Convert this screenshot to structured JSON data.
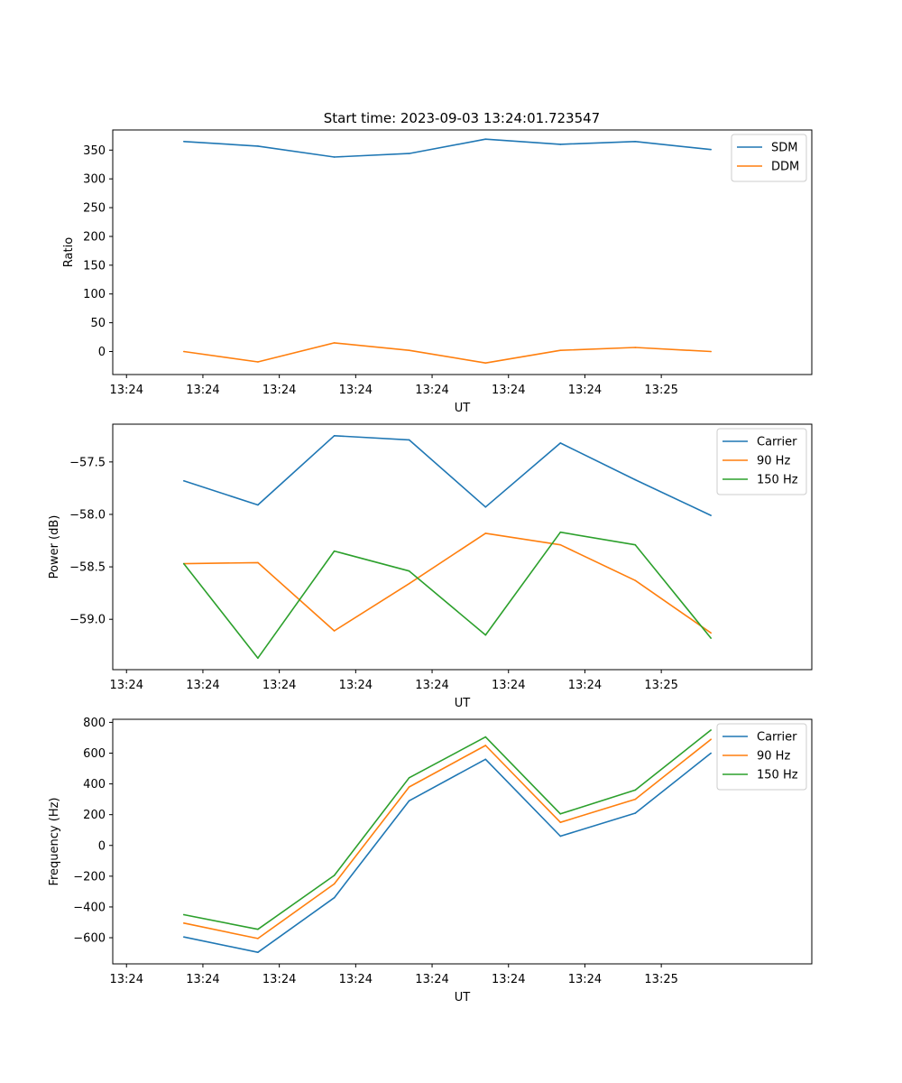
{
  "figure": {
    "title": "Start time: 2023-09-03 13:24:01.723547"
  },
  "chart_data": [
    {
      "type": "line",
      "title": "Start time: 2023-09-03 13:24:01.723547",
      "xlabel": "UT",
      "ylabel": "Ratio",
      "x_tick_labels": [
        "13:24",
        "13:24",
        "13:24",
        "13:24",
        "13:24",
        "13:24",
        "13:24",
        "13:25"
      ],
      "y_ticks": [
        0,
        50,
        100,
        150,
        200,
        250,
        300,
        350
      ],
      "y_tick_labels": [
        "0",
        "50",
        "100",
        "150",
        "200",
        "250",
        "300",
        "350"
      ],
      "ylim": [
        -40,
        385
      ],
      "x_index_range": [
        -0.18,
        8.97
      ],
      "x": [
        0.75,
        1.72,
        2.72,
        3.7,
        4.7,
        5.68,
        6.66,
        7.65
      ],
      "series": [
        {
          "name": "SDM",
          "color": "#1f77b4",
          "values": [
            365,
            357,
            338,
            344,
            369,
            360,
            365,
            351
          ]
        },
        {
          "name": "DDM",
          "color": "#ff7f0e",
          "values": [
            0,
            -18,
            15,
            2,
            -20,
            2,
            7,
            0
          ]
        }
      ],
      "legend": "top-right"
    },
    {
      "type": "line",
      "title": "",
      "xlabel": "UT",
      "ylabel": "Power (dB)",
      "x_tick_labels": [
        "13:24",
        "13:24",
        "13:24",
        "13:24",
        "13:24",
        "13:24",
        "13:24",
        "13:25"
      ],
      "y_ticks": [
        -59.0,
        -58.5,
        -58.0,
        -57.5
      ],
      "y_tick_labels": [
        "−59.0",
        "−58.5",
        "−58.0",
        "−57.5"
      ],
      "ylim": [
        -59.48,
        -57.14
      ],
      "x_index_range": [
        -0.18,
        8.97
      ],
      "x": [
        0.75,
        1.72,
        2.72,
        3.7,
        4.7,
        5.68,
        6.66,
        7.65
      ],
      "series": [
        {
          "name": "Carrier",
          "color": "#1f77b4",
          "values": [
            -57.68,
            -57.91,
            -57.25,
            -57.29,
            -57.93,
            -57.32,
            -57.67,
            -58.01
          ]
        },
        {
          "name": "90 Hz",
          "color": "#ff7f0e",
          "values": [
            -58.47,
            -58.46,
            -59.11,
            -58.66,
            -58.18,
            -58.29,
            -58.63,
            -59.13
          ]
        },
        {
          "name": "150 Hz",
          "color": "#2ca02c",
          "values": [
            -58.47,
            -59.37,
            -58.35,
            -58.54,
            -59.15,
            -58.17,
            -58.29,
            -59.18
          ]
        }
      ],
      "legend": "top-right"
    },
    {
      "type": "line",
      "title": "",
      "xlabel": "UT",
      "ylabel": "Frequency (Hz)",
      "x_tick_labels": [
        "13:24",
        "13:24",
        "13:24",
        "13:24",
        "13:24",
        "13:24",
        "13:24",
        "13:25"
      ],
      "y_ticks": [
        -600,
        -400,
        -200,
        0,
        200,
        400,
        600,
        800
      ],
      "y_tick_labels": [
        "−600",
        "−400",
        "−200",
        "0",
        "200",
        "400",
        "600",
        "800"
      ],
      "ylim": [
        -770,
        820
      ],
      "x_index_range": [
        -0.18,
        8.97
      ],
      "x": [
        0.75,
        1.72,
        2.72,
        3.7,
        4.7,
        5.68,
        6.66,
        7.65
      ],
      "series": [
        {
          "name": "Carrier",
          "color": "#1f77b4",
          "values": [
            -595,
            -695,
            -340,
            290,
            560,
            60,
            210,
            600
          ]
        },
        {
          "name": "90 Hz",
          "color": "#ff7f0e",
          "values": [
            -505,
            -605,
            -250,
            380,
            650,
            150,
            300,
            690
          ]
        },
        {
          "name": "150 Hz",
          "color": "#2ca02c",
          "values": [
            -450,
            -545,
            -195,
            440,
            705,
            205,
            360,
            750
          ]
        }
      ],
      "legend": "top-right"
    }
  ]
}
